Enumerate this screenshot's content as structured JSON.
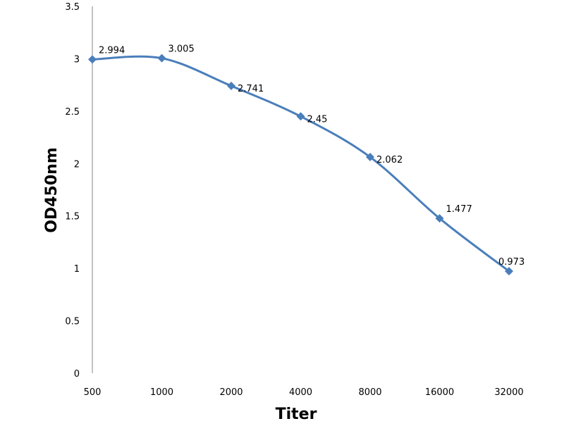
{
  "chart_data": {
    "type": "line",
    "title": "",
    "xlabel": "Titer",
    "ylabel": "OD450nm",
    "categories": [
      "500",
      "1000",
      "2000",
      "4000",
      "8000",
      "16000",
      "32000"
    ],
    "series": [
      {
        "name": "OD450nm",
        "values": [
          2.994,
          3.005,
          2.741,
          2.45,
          2.062,
          1.477,
          0.973
        ],
        "labels": [
          "2.994",
          "3.005",
          "2.741",
          "2.45",
          "2.062",
          "1.477",
          "0.973"
        ]
      }
    ],
    "ylim": [
      0,
      3.5
    ],
    "yticks": [
      0,
      0.5,
      1,
      1.5,
      2,
      2.5,
      3,
      3.5
    ],
    "ytick_labels": [
      "0",
      "0.5",
      "1",
      "1.5",
      "2",
      "2.5",
      "3",
      "3.5"
    ],
    "grid": false,
    "legend": "none",
    "colors": {
      "line": "#4a7ebb",
      "axis": "#868686"
    }
  }
}
